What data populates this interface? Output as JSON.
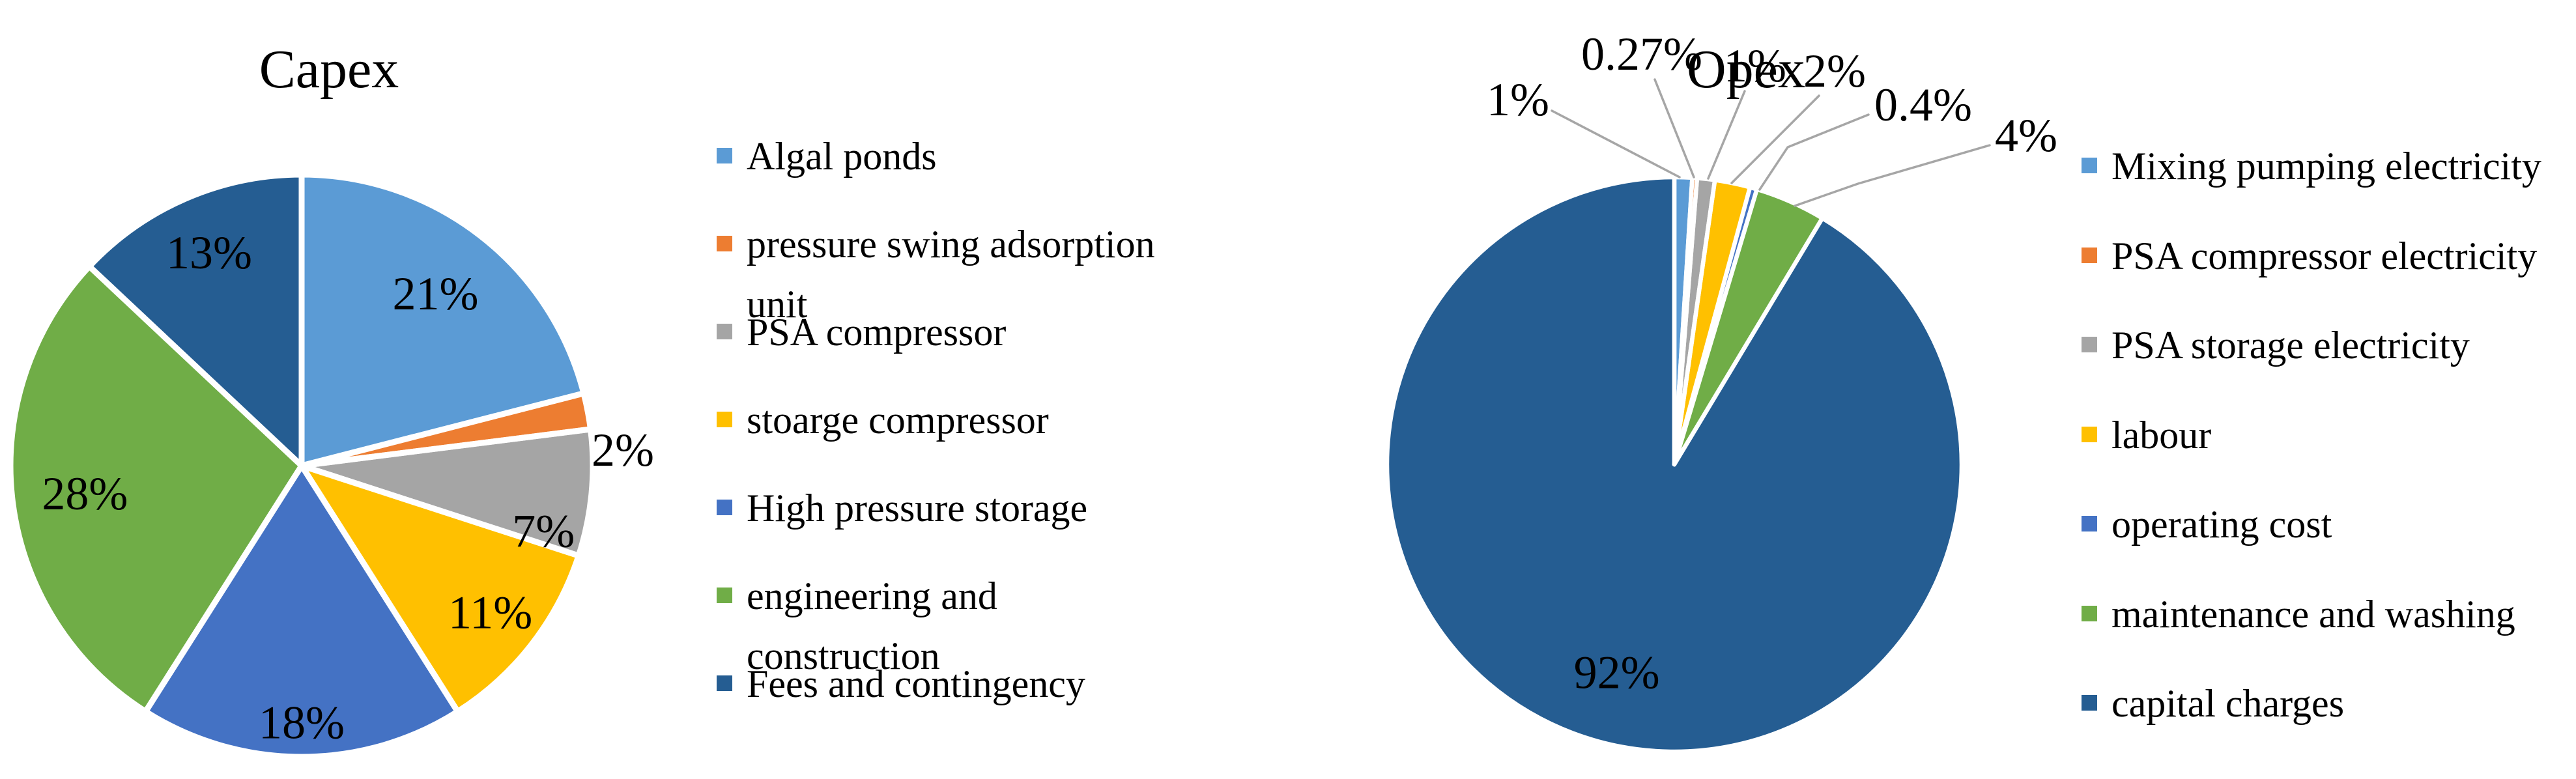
{
  "page": {
    "background_color": "#ffffff",
    "text_color": "#000000",
    "leader_line_color": "#A6A6A6"
  },
  "chart_data": [
    {
      "type": "pie",
      "title": "Capex",
      "legend_position": "right",
      "data_label_format": "percent",
      "categories": [
        "Algal ponds",
        "pressure swing adsorption unit",
        "PSA compressor",
        "stoarge compressor",
        "High pressure storage",
        "engineering and construction",
        "Fees and contingency"
      ],
      "values": [
        21,
        2,
        7,
        11,
        18,
        28,
        13
      ],
      "slices": [
        {
          "category": "Algal ponds",
          "value_pct": 21,
          "data_label": "21%",
          "color": "#5B9BD5",
          "legend_lines": [
            "Algal ponds"
          ]
        },
        {
          "category": "pressure swing adsorption unit",
          "value_pct": 2,
          "data_label": "2%",
          "color": "#ED7D31",
          "legend_lines": [
            "pressure swing adsorption",
            "unit"
          ]
        },
        {
          "category": "PSA compressor",
          "value_pct": 7,
          "data_label": "7%",
          "color": "#A5A5A5",
          "legend_lines": [
            "PSA compressor"
          ]
        },
        {
          "category": "stoarge compressor",
          "value_pct": 11,
          "data_label": "11%",
          "color": "#FFC000",
          "legend_lines": [
            "stoarge compressor"
          ]
        },
        {
          "category": "High pressure storage",
          "value_pct": 18,
          "data_label": "18%",
          "color": "#4472C4",
          "legend_lines": [
            "High pressure storage"
          ]
        },
        {
          "category": "engineering and construction",
          "value_pct": 28,
          "data_label": "28%",
          "color": "#70AD47",
          "legend_lines": [
            "engineering and",
            "construction"
          ]
        },
        {
          "category": "Fees and contingency",
          "value_pct": 13,
          "data_label": "13%",
          "color": "#255D92",
          "legend_lines": [
            "Fees and contingency"
          ]
        }
      ]
    },
    {
      "type": "pie",
      "title": "Opex",
      "legend_position": "right",
      "data_label_format": "percent",
      "categories": [
        "Mixing pumping electricity",
        "PSA compressor electricity",
        "PSA storage electricity",
        "labour",
        "operating cost",
        "maintenance and washing",
        "capital charges"
      ],
      "values": [
        1,
        0.27,
        1,
        2,
        0.4,
        4,
        92
      ],
      "slices": [
        {
          "category": "Mixing pumping electricity",
          "value_pct": 1,
          "data_label": "1%",
          "color": "#5B9BD5",
          "legend_lines": [
            "Mixing pumping electricity"
          ]
        },
        {
          "category": "PSA compressor electricity",
          "value_pct": 0.27,
          "data_label": "0.27%",
          "color": "#ED7D31",
          "legend_lines": [
            "PSA compressor electricity"
          ]
        },
        {
          "category": "PSA storage electricity",
          "value_pct": 1,
          "data_label": "1%",
          "color": "#A5A5A5",
          "legend_lines": [
            "PSA storage electricity"
          ]
        },
        {
          "category": "labour",
          "value_pct": 2,
          "data_label": "2%",
          "color": "#FFC000",
          "legend_lines": [
            "labour"
          ]
        },
        {
          "category": "operating cost",
          "value_pct": 0.4,
          "data_label": "0.4%",
          "color": "#4472C4",
          "legend_lines": [
            "operating cost"
          ]
        },
        {
          "category": "maintenance and washing",
          "value_pct": 4,
          "data_label": "4%",
          "color": "#70AD47",
          "legend_lines": [
            "maintenance and washing"
          ]
        },
        {
          "category": "capital charges",
          "value_pct": 92,
          "data_label": "92%",
          "color": "#255D92",
          "legend_lines": [
            "capital charges"
          ]
        }
      ]
    }
  ]
}
